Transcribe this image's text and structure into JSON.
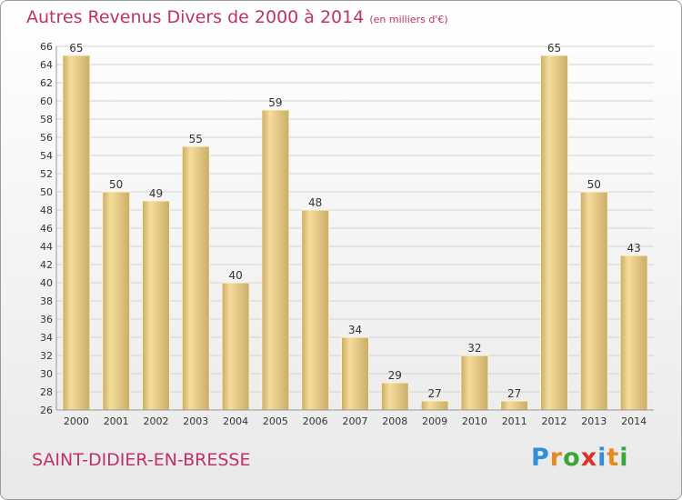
{
  "title": "Autres Revenus Divers de 2000 à 2014",
  "subtitle": "(en milliers d'€)",
  "commune": "SAINT-DIDIER-EN-BRESSE",
  "logo": {
    "letters": [
      "P",
      "r",
      "o",
      "x",
      "i",
      "t",
      "i"
    ],
    "colors": [
      "#2f8fd8",
      "#e58a1f",
      "#3aa63a",
      "#d8342b",
      "#2f8fd8",
      "#e58a1f",
      "#3aa63a"
    ]
  },
  "colors": {
    "bar_light": "#f6dc9c",
    "bar_dark": "#c9ad66",
    "text_accent": "#c0306a",
    "grid": "#d2d2d2"
  },
  "chart_data": {
    "type": "bar",
    "categories": [
      "2000",
      "2001",
      "2002",
      "2003",
      "2004",
      "2005",
      "2006",
      "2007",
      "2008",
      "2009",
      "2010",
      "2011",
      "2012",
      "2013",
      "2014"
    ],
    "values": [
      65,
      50,
      49,
      55,
      40,
      59,
      48,
      34,
      29,
      27,
      32,
      27,
      65,
      50,
      43
    ],
    "title": "Autres Revenus Divers de 2000 à 2014",
    "ylim": [
      26,
      66
    ],
    "yticks": [
      26,
      28,
      30,
      32,
      34,
      36,
      38,
      40,
      42,
      44,
      46,
      48,
      50,
      52,
      54,
      56,
      58,
      60,
      62,
      64,
      66
    ],
    "grid": true,
    "legend": "none"
  }
}
